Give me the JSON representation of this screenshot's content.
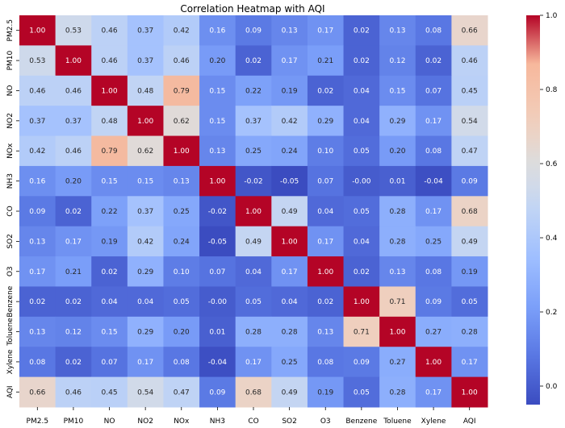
{
  "chart_data": {
    "type": "heatmap",
    "title": "Correlation Heatmap with AQI",
    "labels": [
      "PM2.5",
      "PM10",
      "NO",
      "NO2",
      "NOx",
      "NH3",
      "CO",
      "SO2",
      "O3",
      "Benzene",
      "Toluene",
      "Xylene",
      "AQI"
    ],
    "matrix": [
      [
        1.0,
        0.53,
        0.46,
        0.37,
        0.42,
        0.16,
        0.09,
        0.13,
        0.17,
        0.02,
        0.13,
        0.08,
        0.66
      ],
      [
        0.53,
        1.0,
        0.46,
        0.37,
        0.46,
        0.2,
        0.02,
        0.17,
        0.21,
        0.02,
        0.12,
        0.02,
        0.46
      ],
      [
        0.46,
        0.46,
        1.0,
        0.48,
        0.79,
        0.15,
        0.22,
        0.19,
        0.02,
        0.04,
        0.15,
        0.07,
        0.45
      ],
      [
        0.37,
        0.37,
        0.48,
        1.0,
        0.62,
        0.15,
        0.37,
        0.42,
        0.29,
        0.04,
        0.29,
        0.17,
        0.54
      ],
      [
        0.42,
        0.46,
        0.79,
        0.62,
        1.0,
        0.13,
        0.25,
        0.24,
        0.1,
        0.05,
        0.2,
        0.08,
        0.47
      ],
      [
        0.16,
        0.2,
        0.15,
        0.15,
        0.13,
        1.0,
        -0.02,
        -0.05,
        0.07,
        -0.0,
        0.01,
        -0.04,
        0.09
      ],
      [
        0.09,
        0.02,
        0.22,
        0.37,
        0.25,
        -0.02,
        1.0,
        0.49,
        0.04,
        0.05,
        0.28,
        0.17,
        0.68
      ],
      [
        0.13,
        0.17,
        0.19,
        0.42,
        0.24,
        -0.05,
        0.49,
        1.0,
        0.17,
        0.04,
        0.28,
        0.25,
        0.49
      ],
      [
        0.17,
        0.21,
        0.02,
        0.29,
        0.1,
        0.07,
        0.04,
        0.17,
        1.0,
        0.02,
        0.13,
        0.08,
        0.19
      ],
      [
        0.02,
        0.02,
        0.04,
        0.04,
        0.05,
        -0.0,
        0.05,
        0.04,
        0.02,
        1.0,
        0.71,
        0.09,
        0.05
      ],
      [
        0.13,
        0.12,
        0.15,
        0.29,
        0.2,
        0.01,
        0.28,
        0.28,
        0.13,
        0.71,
        1.0,
        0.27,
        0.28
      ],
      [
        0.08,
        0.02,
        0.07,
        0.17,
        0.08,
        -0.04,
        0.17,
        0.25,
        0.08,
        0.09,
        0.27,
        1.0,
        0.17
      ],
      [
        0.66,
        0.46,
        0.45,
        0.54,
        0.47,
        0.09,
        0.68,
        0.49,
        0.19,
        0.05,
        0.28,
        0.17,
        1.0
      ]
    ],
    "colormap": "coolwarm",
    "vmin": -0.05,
    "vmax": 1.0,
    "colorbar_ticks": [
      "1.0",
      "0.8",
      "0.6",
      "0.4",
      "0.2",
      "0.0"
    ],
    "colorbar_tick_values": [
      1.0,
      0.8,
      0.6,
      0.4,
      0.2,
      0.0
    ],
    "annotations": true,
    "grid": false
  }
}
